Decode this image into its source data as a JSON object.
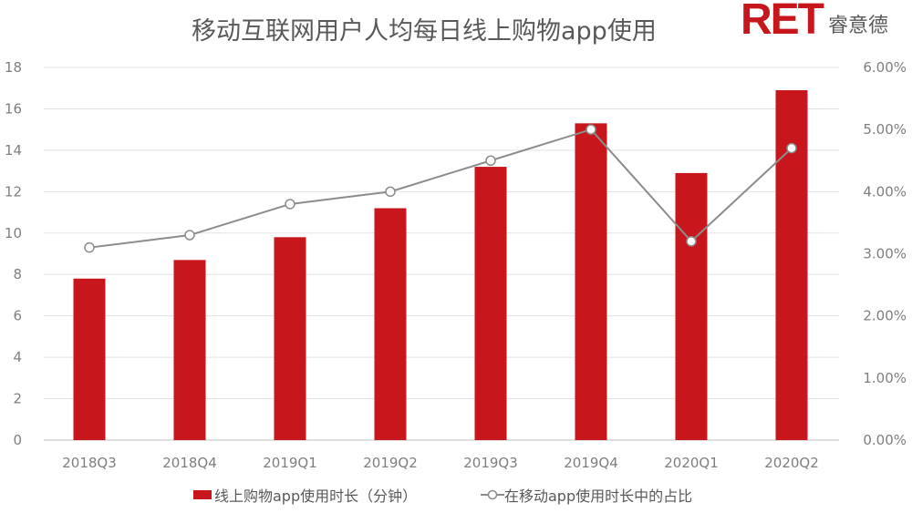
{
  "chart_data": {
    "type": "bar+line",
    "title": "移动互联网用户人均每日线上购物app使用",
    "logo": {
      "text": "RET",
      "subtext": "睿意德"
    },
    "categories": [
      "2018Q3",
      "2018Q4",
      "2019Q1",
      "2019Q2",
      "2019Q3",
      "2019Q4",
      "2020Q1",
      "2020Q2"
    ],
    "series": [
      {
        "name": "线上购物app使用时长（分钟）",
        "type": "bar",
        "axis": "left",
        "color": "#c8161d",
        "values": [
          7.8,
          8.7,
          9.8,
          11.2,
          13.2,
          15.3,
          12.9,
          16.9
        ]
      },
      {
        "name": "在移动app使用时长中的占比",
        "type": "line",
        "axis": "right",
        "color": "#8c8c8c",
        "values": [
          3.1,
          3.3,
          3.8,
          4.0,
          4.5,
          5.0,
          3.2,
          4.7
        ]
      }
    ],
    "y_left": {
      "lim": [
        0,
        18
      ],
      "ticks": [
        "0",
        "2",
        "4",
        "6",
        "8",
        "10",
        "12",
        "14",
        "16",
        "18"
      ]
    },
    "y_right": {
      "lim": [
        0,
        6
      ],
      "unit": "%",
      "ticks": [
        "0.00%",
        "1.00%",
        "2.00%",
        "3.00%",
        "4.00%",
        "5.00%",
        "6.00%"
      ]
    },
    "grid": true,
    "legend": "bottom"
  }
}
